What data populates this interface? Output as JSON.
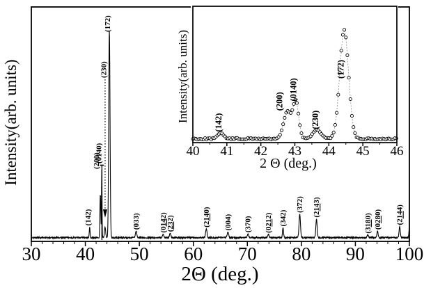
{
  "figure": {
    "background": "#ffffff",
    "curve_color": "#000000",
    "marker_style": "open-circle"
  },
  "chart_data": [
    {
      "id": "main",
      "type": "line",
      "title": "",
      "xlabel": "2Θ (deg.)",
      "ylabel": "Intensity(arb. units)",
      "xlim": [
        30,
        100
      ],
      "xticks": [
        30,
        40,
        50,
        60,
        70,
        80,
        90,
        100
      ],
      "minor_tick_step": 2,
      "yticks": "none (arbitrary units)",
      "baseline": 0.013,
      "peaks": [
        {
          "x": 40.8,
          "h": 0.045,
          "sigma": 0.07,
          "label": {
            "pre": "(142)"
          },
          "lx": 40.5
        },
        {
          "x": 42.78,
          "h": 0.185,
          "sigma": 0.08,
          "label": {
            "pre": "(200)"
          },
          "lx": 42.02,
          "ly": 243
        },
        {
          "x": 43.04,
          "h": 0.29,
          "sigma": 0.05,
          "label": {
            "pre": "(0140)"
          },
          "lx": 42.52,
          "ly": 235
        },
        {
          "x": 43.65,
          "h": 0.045,
          "sigma": 0.11,
          "label": {
            "pre": "(230)"
          },
          "lx": 43.38,
          "ly": 112
        },
        {
          "x": 44.45,
          "h": 0.885,
          "sigma": 0.12,
          "label": {
            "pre": "(172)"
          },
          "lx": 44.1,
          "ly": 46
        },
        {
          "x": 49.4,
          "h": 0.028,
          "sigma": 0.13,
          "label": {
            "pre": "(033)"
          }
        },
        {
          "x": 54.4,
          "h": 0.015,
          "sigma": 0.12,
          "label": {
            "pre": "(0",
            "ul": "14",
            "post": "2)"
          }
        },
        {
          "x": 55.7,
          "h": 0.019,
          "sigma": 0.12,
          "label": {
            "pre": "(",
            "ul": "23",
            "post": "2)"
          }
        },
        {
          "x": 62.4,
          "h": 0.038,
          "sigma": 0.13,
          "label": {
            "pre": "(2",
            "ul": "14",
            "post": "0)"
          }
        },
        {
          "x": 66.4,
          "h": 0.024,
          "sigma": 0.13,
          "label": {
            "pre": "(004)"
          }
        },
        {
          "x": 70.1,
          "h": 0.016,
          "sigma": 0.12,
          "label": {
            "pre": "(370)"
          }
        },
        {
          "x": 73.9,
          "h": 0.014,
          "sigma": 0.12,
          "label": {
            "pre": "(0",
            "ul": "21",
            "post": "2)"
          }
        },
        {
          "x": 76.6,
          "h": 0.042,
          "sigma": 0.1,
          "label": {
            "pre": "(342)"
          }
        },
        {
          "x": 79.7,
          "h": 0.1,
          "sigma": 0.13,
          "label": {
            "pre": "(372)"
          }
        },
        {
          "x": 82.8,
          "h": 0.08,
          "sigma": 0.12,
          "label": {
            "pre": "(2",
            "ul": "14",
            "post": "3)"
          }
        },
        {
          "x": 92.3,
          "h": 0.012,
          "sigma": 0.12,
          "label": {
            "pre": "(3",
            "ul": "18",
            "post": "0)"
          }
        },
        {
          "x": 94.1,
          "h": 0.028,
          "sigma": 0.11,
          "label": {
            "pre": "(0",
            "ul": "28",
            "post": "0)"
          }
        },
        {
          "x": 98.2,
          "h": 0.048,
          "sigma": 0.11,
          "label": {
            "pre": "(2",
            "ul": "14",
            "post": "4)"
          }
        },
        {
          "x": 100.05,
          "h": 0.06,
          "sigma": 0.1
        }
      ],
      "markers": {
        "solid_stick": {
          "x": 43.07,
          "top_frac": 0.325,
          "cap_halfwidth": 3
        },
        "dotted_arrow": {
          "x": 43.66,
          "top_y": 114,
          "bottom_y": 301,
          "arrow_tip_y": 313
        }
      }
    },
    {
      "id": "inset",
      "type": "scatter",
      "title": "",
      "xlabel": "2 Θ (deg.)",
      "ylabel": "Intensity(arb. units)",
      "xlim": [
        40,
        46
      ],
      "xticks": [
        40,
        41,
        42,
        43,
        44,
        45,
        46
      ],
      "minor_tick_step": 0.5,
      "yticks": "none (arbitrary units)",
      "baseline": 0.018,
      "peaks": [
        {
          "x": 40.82,
          "h": 0.045,
          "sigma": 0.08,
          "label": {
            "pre": "(142)"
          },
          "lx": 40.76
        },
        {
          "x": 42.78,
          "h": 0.2,
          "sigma": 0.11,
          "label": {
            "pre": "(200)"
          },
          "lx": 42.55
        },
        {
          "x": 43.03,
          "h": 0.27,
          "sigma": 0.085,
          "label": {
            "pre": "(0140)"
          },
          "lx": 42.96
        },
        {
          "x": 43.65,
          "h": 0.065,
          "sigma": 0.12,
          "label": {
            "pre": "(230)"
          },
          "lx": 43.6
        },
        {
          "x": 44.45,
          "h": 0.8,
          "sigma": 0.13,
          "label": {
            "pre": "(172)"
          },
          "lx": 44.35,
          "ly": 113
        }
      ]
    }
  ]
}
